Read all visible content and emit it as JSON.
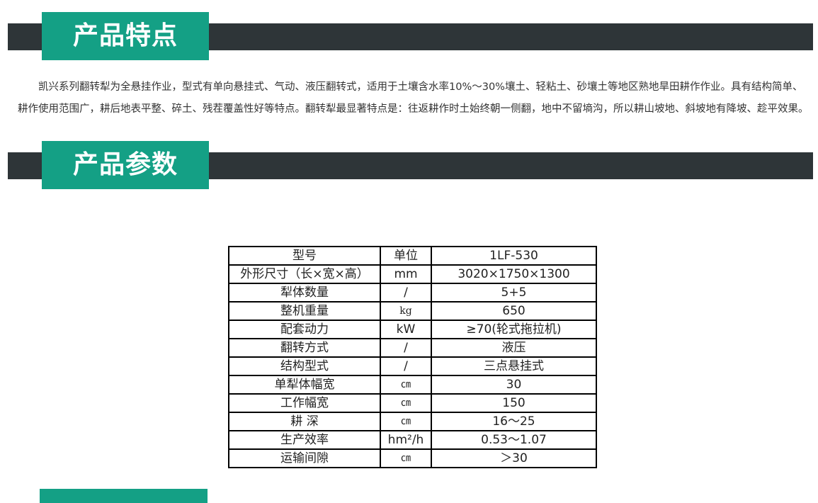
{
  "section1": {
    "title": "产品特点"
  },
  "description": "凯兴系列翻转犁为全悬挂作业，型式有单向悬挂式、气动、液压翻转式，适用于土壤含水率10%～30%壤土、轻粘土、砂壤土等地区熟地旱田耕作作业。具有结构简单、耕作使用范围广，耕后地表平整、碎土、残茬覆盖性好等特点。翻转犁最显著特点是：往返耕作时土始终朝一侧翻，地中不留墒沟，所以耕山坡地、斜坡地有降坡、趁平效果。",
  "section2": {
    "title": "产品参数"
  },
  "colors": {
    "accent": "#14a085",
    "bar": "#2e3538"
  },
  "table": {
    "rows": [
      [
        "型号",
        "单位",
        "1LF-530"
      ],
      [
        "外形尺寸（长×宽×高）",
        "mm",
        "3020×1750×1300"
      ],
      [
        "犁体数量",
        "/",
        "5+5"
      ],
      [
        "整机重量",
        "kg",
        "650"
      ],
      [
        "配套动力",
        "kW",
        "≥70(轮式拖拉机)"
      ],
      [
        "翻转方式",
        "/",
        "液压"
      ],
      [
        "结构型式",
        "/",
        "三点悬挂式"
      ],
      [
        "单犁体幅宽",
        "㎝",
        "30"
      ],
      [
        "工作幅宽",
        "㎝",
        "150"
      ],
      [
        "耕  深",
        "㎝",
        "16～25"
      ],
      [
        "生产效率",
        "hm²/h",
        "0.53～1.07"
      ],
      [
        "运输间隙",
        "㎝",
        "＞30"
      ]
    ]
  }
}
